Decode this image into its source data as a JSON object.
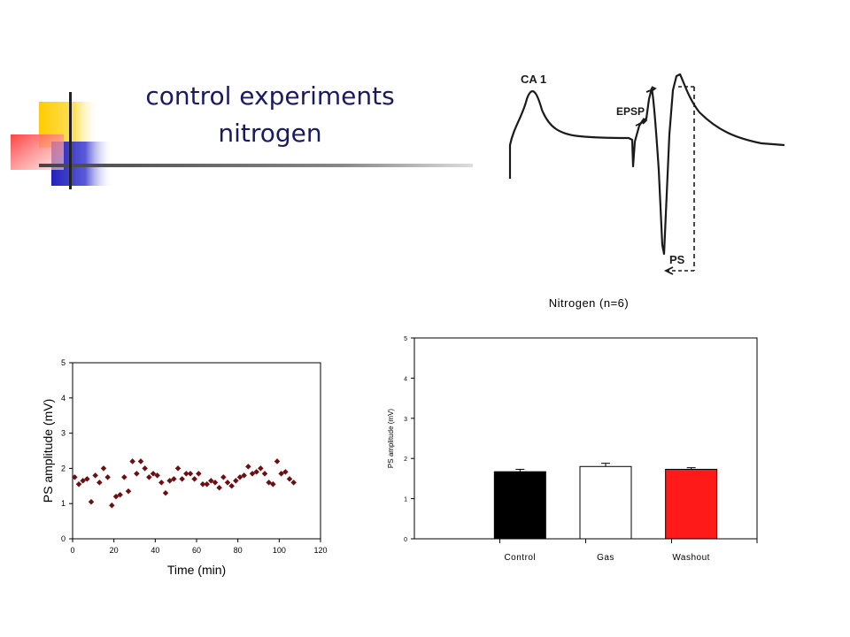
{
  "slide": {
    "title_line1": "control experiments",
    "title_line2": "nitrogen"
  },
  "trace": {
    "label_region": "CA 1",
    "label_epsp": "EPSP",
    "label_ps": "PS"
  },
  "chart_data": [
    {
      "type": "scatter",
      "title": "",
      "xlabel": "Time (min)",
      "ylabel": "PS amplitude (mV)",
      "xlim": [
        0,
        120
      ],
      "ylim": [
        0,
        5
      ],
      "xticks": [
        0,
        20,
        40,
        60,
        80,
        100,
        120
      ],
      "yticks": [
        0,
        1,
        2,
        3,
        4,
        5
      ],
      "grid": false,
      "marker_color": "#6b0f12",
      "x": [
        1,
        3,
        5,
        7,
        9,
        11,
        13,
        15,
        17,
        19,
        21,
        23,
        25,
        27,
        29,
        31,
        33,
        35,
        37,
        39,
        41,
        43,
        45,
        47,
        49,
        51,
        53,
        55,
        57,
        59,
        61,
        63,
        65,
        67,
        69,
        71,
        73,
        75,
        77,
        79,
        81,
        83,
        85,
        87,
        89,
        91,
        93,
        95,
        97,
        99,
        101,
        103,
        105,
        107
      ],
      "y": [
        1.75,
        1.55,
        1.65,
        1.7,
        1.05,
        1.8,
        1.6,
        2.0,
        1.75,
        0.95,
        1.2,
        1.25,
        1.75,
        1.35,
        2.2,
        1.85,
        2.2,
        2.0,
        1.75,
        1.85,
        1.8,
        1.6,
        1.3,
        1.65,
        1.7,
        2.0,
        1.7,
        1.85,
        1.85,
        1.7,
        1.85,
        1.55,
        1.55,
        1.65,
        1.6,
        1.45,
        1.75,
        1.6,
        1.5,
        1.65,
        1.75,
        1.8,
        2.05,
        1.85,
        1.9,
        2.0,
        1.85,
        1.6,
        1.55,
        2.2,
        1.85,
        1.9,
        1.7,
        1.6
      ]
    },
    {
      "type": "bar",
      "title": "Nitrogen (n=6)",
      "xlabel": "",
      "ylabel": "PS amplitude (mV)",
      "ylim": [
        0,
        5
      ],
      "yticks": [
        0,
        1,
        2,
        3,
        4,
        5
      ],
      "grid": false,
      "categories": [
        "Control",
        "Gas",
        "Washout"
      ],
      "values": [
        1.67,
        1.8,
        1.73
      ],
      "errors": [
        0.06,
        0.08,
        0.04
      ],
      "colors": [
        "#000000",
        "#ffffff",
        "#ff1a1a"
      ]
    }
  ]
}
